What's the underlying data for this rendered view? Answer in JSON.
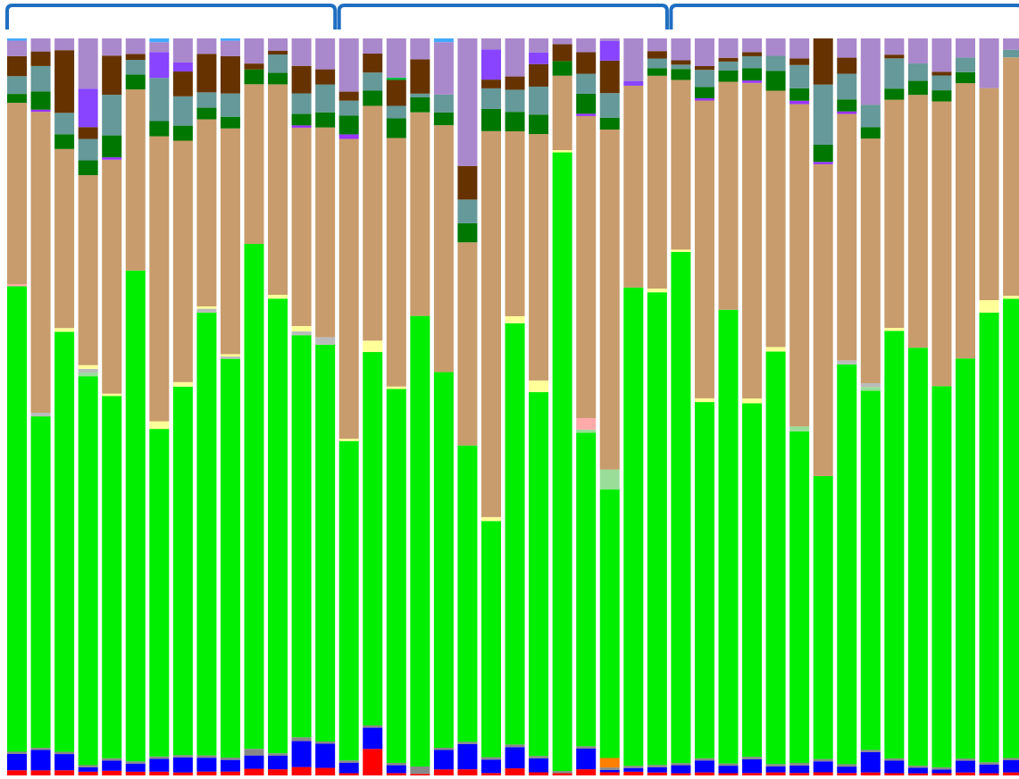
{
  "chart_data": {
    "type": "bar",
    "stacked": true,
    "normalized": true,
    "ylim": [
      0,
      100
    ],
    "groups": [
      {
        "start": 0,
        "end": 13
      },
      {
        "start": 14,
        "end": 27
      },
      {
        "start": 28,
        "end": 42
      }
    ],
    "series": [
      {
        "color": "#ff0000",
        "values": [
          0.7,
          0.7,
          0.7,
          0.5,
          0.6,
          0.5,
          0.5,
          0.4,
          0.5,
          0.5,
          0.9,
          0.8,
          1.1,
          1.0,
          0.3,
          3.5,
          0.3,
          0.2,
          0.8,
          0.8,
          0.3,
          0.8,
          0.4,
          0.3,
          0.8,
          0.4,
          0.5,
          0.4,
          0.3,
          0.4,
          0.3,
          0.3,
          0.4,
          0.3,
          0.4,
          0.3,
          0.4,
          0.3,
          0.3,
          0.3,
          0.4,
          0.3,
          0.4
        ]
      },
      {
        "color": "#0000ff",
        "values": [
          2.2,
          2.8,
          2.2,
          0.6,
          1.3,
          1.1,
          1.7,
          2.0,
          1.8,
          1.5,
          1.8,
          1.8,
          3.4,
          3.2,
          1.4,
          2.8,
          1.0,
          0.0,
          2.6,
          3.3,
          1.7,
          2.4,
          1.8,
          0.0,
          2.7,
          0.3,
          0.5,
          0.7,
          1.1,
          1.6,
          1.0,
          1.7,
          0.8,
          0.9,
          1.4,
          0.8,
          2.7,
          1.7,
          0.8,
          0.5,
          1.6,
          1.2,
          1.6
        ]
      },
      {
        "color": "#888888",
        "values": [
          0.3,
          0.3,
          0.3,
          0.3,
          0.3,
          0.3,
          0.3,
          0.3,
          0.3,
          0.3,
          0.9,
          0.3,
          0.5,
          0.3,
          0.3,
          0.3,
          0.3,
          1.0,
          0.3,
          0.3,
          0.3,
          0.3,
          0.3,
          0.3,
          0.3,
          0.3,
          0.3,
          0.3,
          0.3,
          0.3,
          0.3,
          0.3,
          0.3,
          0.3,
          0.3,
          0.3,
          0.3,
          0.3,
          0.3,
          0.3,
          0.3,
          0.3,
          0.3
        ]
      },
      {
        "color": "#ff8000",
        "values": [
          0,
          0,
          0,
          0,
          0,
          0,
          0,
          0,
          0,
          0,
          0,
          0,
          0,
          0,
          0,
          0,
          0,
          0,
          0,
          0,
          0,
          0,
          0,
          0,
          0,
          1.2,
          0,
          0,
          0,
          0,
          0,
          0,
          0,
          0,
          0,
          0,
          0,
          0,
          0,
          0,
          0,
          0,
          0
        ]
      },
      {
        "color": "#00ee00",
        "values": [
          62.9,
          45.6,
          57.0,
          52.6,
          46.3,
          66.4,
          43.2,
          49.0,
          57.5,
          51.4,
          68.3,
          59.4,
          52.7,
          52.6,
          42.6,
          49.3,
          47.7,
          60.4,
          50.2,
          38.8,
          29.8,
          47.6,
          46.8,
          84.7,
          40.8,
          33.9,
          64.7,
          63.3,
          70.2,
          47.6,
          60.7,
          43.7,
          54.4,
          39.9,
          36.2,
          49.8,
          47.7,
          57.9,
          60.0,
          51.4,
          54.5,
          61.5,
          60.5
        ]
      },
      {
        "color": "#99dd99",
        "values": [
          0,
          0,
          0,
          0.5,
          0,
          0,
          0,
          0,
          0,
          0,
          0,
          0,
          0,
          0,
          0,
          0,
          0,
          0,
          0,
          0,
          0,
          0,
          0,
          0,
          0.4,
          2.5,
          0,
          0,
          0,
          0,
          0,
          0,
          0,
          0.6,
          0,
          0,
          0.5,
          0,
          0,
          0,
          0,
          0,
          0
        ]
      },
      {
        "color": "#ffaaaa",
        "values": [
          0.3,
          0,
          0,
          0,
          0,
          0,
          0,
          0,
          0,
          0,
          0,
          0,
          0,
          0,
          0,
          0,
          0,
          0,
          0,
          0,
          0,
          0,
          0,
          0,
          1.5,
          0,
          0,
          0,
          0,
          0,
          0,
          0,
          0,
          0,
          0,
          0,
          0,
          0,
          0,
          0,
          0,
          0,
          0
        ]
      },
      {
        "color": "#bbbbbb",
        "values": [
          0,
          0.5,
          0,
          0.5,
          0,
          0,
          0,
          0,
          0.5,
          0.3,
          0,
          0,
          0.5,
          1.0,
          0,
          0,
          0,
          0,
          0,
          0,
          0,
          0,
          0,
          0,
          0,
          0,
          0,
          0,
          0,
          0,
          0,
          0,
          0,
          0,
          0,
          0.5,
          0.5,
          0,
          0,
          0,
          0,
          0,
          0
        ]
      },
      {
        "color": "#ffff99",
        "values": [
          0,
          0,
          0.5,
          0.5,
          0.3,
          0,
          1.0,
          0.6,
          0.3,
          0.3,
          0,
          0.5,
          0.7,
          0,
          0.3,
          1.5,
          0.3,
          0,
          0,
          0,
          0.5,
          0.8,
          1.5,
          0.3,
          0,
          0,
          0,
          0.5,
          0.3,
          0.5,
          0,
          0.6,
          0.6,
          0,
          0,
          0,
          0,
          0.4,
          0,
          0,
          0,
          1.7,
          0.4
        ]
      },
      {
        "color": "#c89c6c",
        "values": [
          24.5,
          41.4,
          24.3,
          25.7,
          29.9,
          24.5,
          37.6,
          32.1,
          24.3,
          29.1,
          21.6,
          27.5,
          26.0,
          27.8,
          40.0,
          31.0,
          31.7,
          27.3,
          33.0,
          26.6,
          48.7,
          20.9,
          31.7,
          10.2,
          39.3,
          42.9,
          27.3,
          28.5,
          23.3,
          39.8,
          30.5,
          39.0,
          33.8,
          38.8,
          39.9,
          30.7,
          32.5,
          30.9,
          36.3,
          38.4,
          37.5,
          29.0,
          31.4
        ]
      },
      {
        "color": "#9933ff",
        "values": [
          0,
          0.3,
          0,
          0,
          0.3,
          0,
          0,
          0,
          0,
          0,
          0,
          0,
          0.3,
          0,
          0.6,
          0,
          0,
          0,
          0,
          0,
          0,
          0,
          0,
          0,
          0.3,
          0,
          0,
          0,
          0,
          0.3,
          0,
          0.3,
          0,
          0.4,
          0.3,
          0.3,
          0,
          0,
          0,
          0,
          0,
          0,
          0
        ]
      },
      {
        "color": "#007700",
        "values": [
          1.2,
          2.5,
          2.0,
          2.0,
          2.8,
          2.0,
          2.0,
          2.0,
          1.5,
          1.5,
          2.0,
          1.5,
          1.5,
          2.0,
          2.5,
          2.0,
          2.5,
          2.0,
          1.7,
          2.5,
          2.8,
          2.2,
          2.5,
          2.0,
          2.6,
          1.5,
          0,
          1.0,
          1.5,
          1.5,
          1.5,
          1.5,
          2.6,
          1.5,
          2.2,
          1.5,
          1.5,
          1.5,
          2.0,
          1.5,
          1.5,
          0,
          0
        ]
      },
      {
        "color": "#669999",
        "values": [
          2.4,
          3.5,
          2.9,
          2.9,
          5.2,
          2.0,
          5.7,
          3.9,
          2.0,
          3.0,
          0,
          2.4,
          2.7,
          3.7,
          2.0,
          2.4,
          1.6,
          0.5,
          2.4,
          3.1,
          2.6,
          2.5,
          3.6,
          0,
          2.6,
          3.1,
          0,
          1.3,
          0.6,
          2.3,
          1.2,
          1.5,
          2.0,
          2.8,
          7.7,
          3.2,
          3.0,
          4.1,
          2.5,
          2.0,
          2.0,
          0,
          1.0
        ]
      },
      {
        "color": "#663300",
        "values": [
          2.7,
          2.0,
          8.5,
          1.6,
          5.0,
          0.8,
          0,
          3.3,
          5.0,
          4.8,
          0.8,
          0.5,
          3.6,
          2.0,
          1.2,
          2.5,
          3.3,
          4.6,
          0,
          4.4,
          1.1,
          1.5,
          2.9,
          2.3,
          2.8,
          4.1,
          0,
          1.0,
          0.6,
          0.5,
          0.5,
          0.5,
          0,
          0.8,
          5.9,
          2.0,
          0,
          0.5,
          0,
          0.5,
          0,
          0,
          0
        ]
      },
      {
        "color": "#00bb44",
        "values": [
          0,
          0,
          0,
          0,
          0,
          0,
          0,
          0,
          0,
          0,
          0,
          0,
          0,
          0,
          0,
          0,
          0.3,
          0,
          0,
          0,
          0,
          0,
          0,
          0,
          0,
          0,
          0,
          0,
          0,
          0,
          0,
          0,
          0,
          0,
          0,
          0,
          0,
          0,
          0,
          0,
          0,
          0,
          0
        ]
      },
      {
        "color": "#8844ff",
        "values": [
          0,
          0,
          0,
          5.2,
          0,
          0,
          3.4,
          1.2,
          0,
          0,
          0,
          0,
          0,
          0,
          0,
          0,
          0,
          0,
          0,
          0,
          3.8,
          0,
          1.5,
          0,
          0,
          2.5,
          0.6,
          0,
          0,
          0,
          0,
          0,
          0,
          0,
          0,
          0,
          0,
          0,
          0,
          0,
          0,
          0,
          0
        ]
      },
      {
        "color": "#aa88cc",
        "values": [
          2.1,
          1.8,
          1.6,
          6.8,
          2.2,
          2.1,
          1.3,
          3.2,
          2.0,
          2.0,
          3.4,
          1.6,
          3.6,
          4.1,
          7.1,
          2.0,
          5.0,
          2.8,
          7.0,
          16.7,
          1.4,
          4.3,
          1.8,
          0.8,
          1.8,
          0.3,
          5.8,
          1.7,
          3.0,
          3.7,
          2.6,
          1.7,
          2.3,
          2.4,
          0,
          2.4,
          8.8,
          2.2,
          3.6,
          4.5,
          2.6,
          6.8,
          1.5
        ]
      },
      {
        "color": "#44aaff",
        "values": [
          0.3,
          0,
          0,
          0,
          0,
          0,
          0.5,
          0,
          0,
          0.3,
          0,
          0,
          0,
          0,
          0,
          0,
          0,
          0,
          0.5,
          0,
          0,
          0,
          0,
          0,
          0,
          0,
          0,
          0,
          0,
          0,
          0,
          0,
          0,
          0,
          0,
          0,
          0,
          0,
          0,
          0,
          0,
          0,
          0
        ]
      }
    ]
  }
}
